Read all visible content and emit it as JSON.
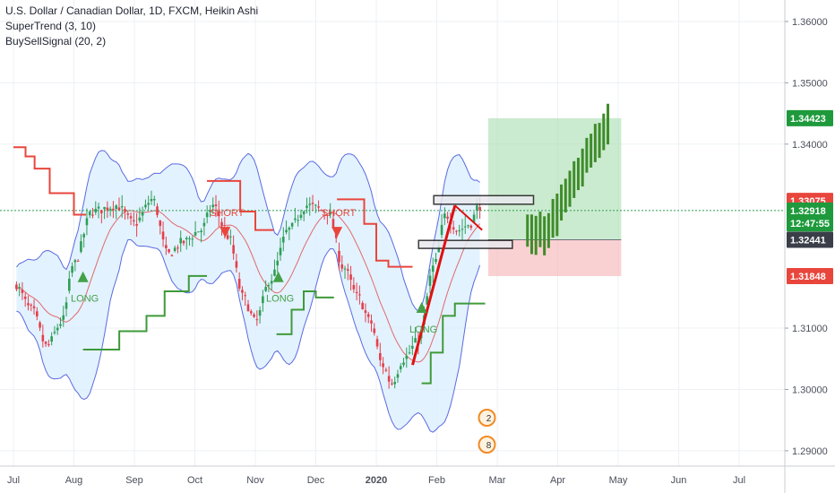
{
  "header": {
    "title": "U.S. Dollar / Canadian Dollar, 1D, FXCM, Heikin Ashi",
    "indicator_1": "SuperTrend (3, 10)",
    "indicator_2": "BuySellSignal (20, 2)"
  },
  "chart_data": {
    "type": "candlestick",
    "x_tick_labels": [
      "Jul",
      "Aug",
      "Sep",
      "Oct",
      "Nov",
      "Dec",
      "2020",
      "Feb",
      "Mar",
      "Apr",
      "May",
      "Jun",
      "Jul"
    ],
    "y_tick_labels": [
      "1.36000",
      "1.35000",
      "1.34000",
      "1.31000",
      "1.30000",
      "1.29000"
    ],
    "y_tick_values": [
      1.36,
      1.35,
      1.34,
      1.31,
      1.3,
      1.29
    ],
    "ylim": [
      1.2875,
      1.3635
    ],
    "price_tags": [
      {
        "label": "1.34423",
        "value": 1.34423,
        "color": "#1e9a3c"
      },
      {
        "label": "1.33075",
        "value": 1.33075,
        "color": "#e8463c"
      },
      {
        "label": "1.32918",
        "value": 1.32918,
        "color": "#1e9a3c"
      },
      {
        "label": "12:47:55",
        "value": 1.32708,
        "color": "#1e9a3c"
      },
      {
        "label": "1.32441",
        "value": 1.32441,
        "color": "#3a3e48"
      },
      {
        "label": "1.31848",
        "value": 1.31848,
        "color": "#e8463c"
      }
    ],
    "signals": [
      {
        "label": "LONG",
        "kind": "buy",
        "month_index": 1.15,
        "price": 1.3175
      },
      {
        "label": "SHORT",
        "kind": "sell",
        "month_index": 3.5,
        "price": 1.3265
      },
      {
        "label": "LONG",
        "kind": "buy",
        "month_index": 4.38,
        "price": 1.3175
      },
      {
        "label": "SHORT",
        "kind": "sell",
        "month_index": 5.35,
        "price": 1.3265
      },
      {
        "label": "LONG",
        "kind": "buy",
        "month_index": 6.75,
        "price": 1.3125
      }
    ],
    "position": {
      "entry": 1.32441,
      "target": 1.34423,
      "stop": 1.31848
    },
    "current_price_line": 1.32918,
    "colors": {
      "up": "#2e9e57",
      "down": "#e33f4a",
      "band": "#5a6be0",
      "band_fill": "#dcefff",
      "supertrend_down": "#e8463c",
      "supertrend_up": "#3f9a3a",
      "profit_zone": "#a9ddb0",
      "loss_zone": "#f6b3b6",
      "projection": "#3f8c2a"
    },
    "event_markers": [
      "2",
      "8"
    ]
  }
}
